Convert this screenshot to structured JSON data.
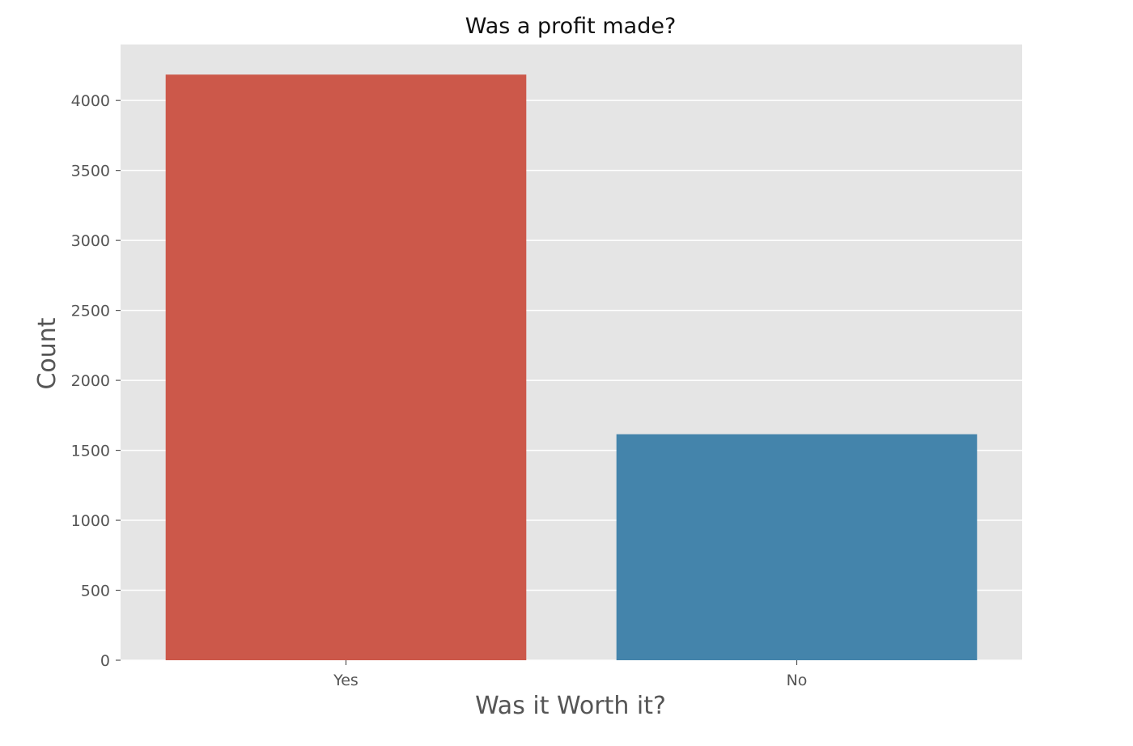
{
  "chart_data": {
    "type": "bar",
    "title": "Was a profit made?",
    "xlabel": "Was it Worth it?",
    "ylabel": "Count",
    "categories": [
      "Yes",
      "No"
    ],
    "values": [
      4185,
      1615
    ],
    "colors": [
      "#cc584a",
      "#4484ab"
    ],
    "ylim": [
      0,
      4400
    ],
    "yticks": [
      0,
      500,
      1000,
      1500,
      2000,
      2500,
      3000,
      3500,
      4000
    ],
    "grid": true,
    "background": "#e5e5e5",
    "legend": "none"
  }
}
